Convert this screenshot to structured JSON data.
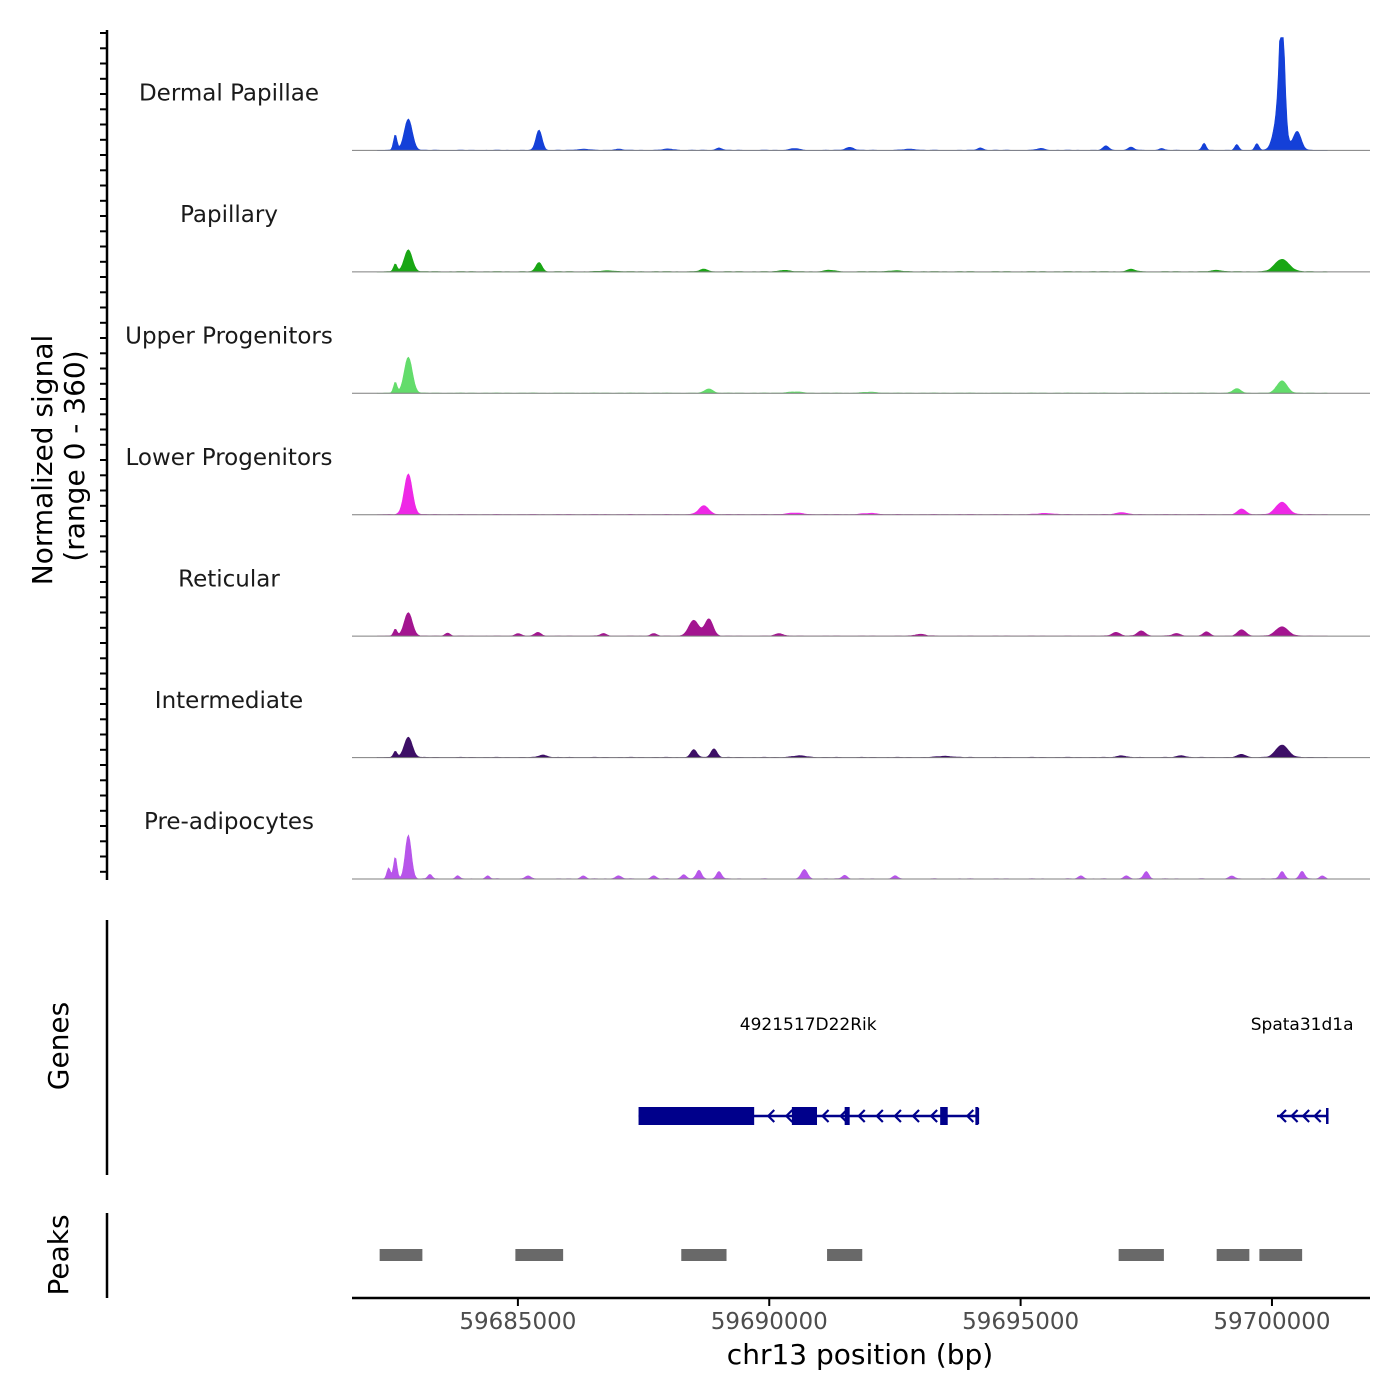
{
  "chart_data": {
    "type": "area",
    "chromosome": "chr13",
    "region": [
      59681700,
      59701950
    ],
    "ylabel": "Normalized signal",
    "ylabel_range": "(range 0 - 360)",
    "signal_range": [
      0,
      360
    ],
    "xlabel": "chr13 position (bp)",
    "xticks": [
      59685000,
      59690000,
      59695000,
      59700000
    ],
    "xtick_labels": [
      "59685000",
      "59690000",
      "59695000",
      "59700000"
    ],
    "tracks_title": "Normalized signal",
    "genes_title": "Genes",
    "peaks_title": "Peaks",
    "series": [
      {
        "name": "Dermal Papillae",
        "color": "#1440d8",
        "peaks": [
          [
            59682560,
            50,
            35
          ],
          [
            59682820,
            100,
            80
          ],
          [
            59685420,
            65,
            60
          ],
          [
            59686300,
            4,
            120
          ],
          [
            59687000,
            4,
            80
          ],
          [
            59688000,
            4,
            120
          ],
          [
            59689000,
            8,
            60
          ],
          [
            59690500,
            6,
            90
          ],
          [
            59691600,
            10,
            80
          ],
          [
            59692800,
            4,
            120
          ],
          [
            59694200,
            8,
            60
          ],
          [
            59695400,
            6,
            80
          ],
          [
            59696700,
            14,
            60
          ],
          [
            59697200,
            10,
            60
          ],
          [
            59697800,
            6,
            50
          ],
          [
            59698650,
            22,
            40
          ],
          [
            59699300,
            18,
            40
          ],
          [
            59699700,
            22,
            40
          ],
          [
            59700150,
            130,
            100
          ],
          [
            59700200,
            360,
            50
          ],
          [
            59700500,
            60,
            80
          ]
        ]
      },
      {
        "name": "Papillary",
        "color": "#19a614",
        "peaks": [
          [
            59682560,
            25,
            35
          ],
          [
            59682820,
            70,
            80
          ],
          [
            59685420,
            30,
            60
          ],
          [
            59686800,
            3,
            150
          ],
          [
            59688700,
            8,
            80
          ],
          [
            59690300,
            5,
            100
          ],
          [
            59691200,
            5,
            100
          ],
          [
            59692500,
            3,
            150
          ],
          [
            59697200,
            8,
            80
          ],
          [
            59698900,
            5,
            100
          ],
          [
            59700200,
            40,
            140
          ]
        ]
      },
      {
        "name": "Upper Progenitors",
        "color": "#63dc6b",
        "peaks": [
          [
            59682560,
            35,
            35
          ],
          [
            59682820,
            115,
            80
          ],
          [
            59688800,
            14,
            80
          ],
          [
            59690500,
            4,
            150
          ],
          [
            59692000,
            3,
            150
          ],
          [
            59699300,
            14,
            80
          ],
          [
            59700200,
            40,
            100
          ]
        ]
      },
      {
        "name": "Lower Progenitors",
        "color": "#ee28e6",
        "peaks": [
          [
            59682820,
            130,
            80
          ],
          [
            59688700,
            28,
            100
          ],
          [
            59690500,
            5,
            150
          ],
          [
            59692000,
            4,
            150
          ],
          [
            59695500,
            4,
            150
          ],
          [
            59697000,
            7,
            100
          ],
          [
            59699400,
            18,
            80
          ],
          [
            59700200,
            40,
            120
          ]
        ]
      },
      {
        "name": "Reticular",
        "color": "#a31590",
        "peaks": [
          [
            59682560,
            22,
            35
          ],
          [
            59682820,
            75,
            80
          ],
          [
            59683600,
            10,
            50
          ],
          [
            59685000,
            8,
            60
          ],
          [
            59685400,
            12,
            60
          ],
          [
            59686700,
            8,
            60
          ],
          [
            59687700,
            8,
            60
          ],
          [
            59688500,
            50,
            100
          ],
          [
            59688800,
            55,
            80
          ],
          [
            59690200,
            8,
            80
          ],
          [
            59693000,
            6,
            100
          ],
          [
            59696900,
            12,
            80
          ],
          [
            59697400,
            16,
            80
          ],
          [
            59698100,
            8,
            80
          ],
          [
            59698700,
            14,
            60
          ],
          [
            59699400,
            20,
            80
          ],
          [
            59700200,
            30,
            120
          ]
        ]
      },
      {
        "name": "Intermediate",
        "color": "#3d0f66",
        "peaks": [
          [
            59682560,
            20,
            35
          ],
          [
            59682820,
            65,
            80
          ],
          [
            59685500,
            8,
            80
          ],
          [
            59688500,
            25,
            60
          ],
          [
            59688900,
            28,
            60
          ],
          [
            59690600,
            5,
            150
          ],
          [
            59693500,
            4,
            150
          ],
          [
            59697000,
            6,
            80
          ],
          [
            59698200,
            6,
            80
          ],
          [
            59699400,
            10,
            80
          ],
          [
            59700200,
            40,
            120
          ]
        ]
      },
      {
        "name": "Pre-adipocytes",
        "color": "#b755ea",
        "peaks": [
          [
            59682430,
            35,
            35
          ],
          [
            59682560,
            70,
            35
          ],
          [
            59682820,
            140,
            60
          ],
          [
            59683250,
            15,
            40
          ],
          [
            59683800,
            10,
            40
          ],
          [
            59684400,
            10,
            40
          ],
          [
            59685200,
            10,
            50
          ],
          [
            59686300,
            10,
            50
          ],
          [
            59687000,
            10,
            60
          ],
          [
            59687700,
            10,
            50
          ],
          [
            59688300,
            14,
            50
          ],
          [
            59688600,
            28,
            50
          ],
          [
            59689000,
            24,
            50
          ],
          [
            59690700,
            30,
            60
          ],
          [
            59691500,
            12,
            50
          ],
          [
            59692500,
            10,
            50
          ],
          [
            59696200,
            10,
            50
          ],
          [
            59697100,
            10,
            50
          ],
          [
            59697500,
            24,
            50
          ],
          [
            59699200,
            10,
            50
          ],
          [
            59700200,
            24,
            50
          ],
          [
            59700600,
            24,
            50
          ],
          [
            59701000,
            10,
            50
          ]
        ]
      }
    ],
    "genes": [
      {
        "name": "4921517D22Rik",
        "color": "#00008b",
        "start": 59687400,
        "end": 59694150,
        "strand": "-",
        "exons": [
          [
            59687400,
            59689700
          ],
          [
            59690450,
            59690950
          ],
          [
            59691500,
            59691600
          ],
          [
            59693400,
            59693550
          ],
          [
            59694100,
            59694150
          ]
        ]
      },
      {
        "name": "Spata31d1a",
        "color": "#00008b",
        "start": 59700100,
        "end": 59701100,
        "strand": "-",
        "exons": []
      }
    ],
    "peak_regions": {
      "color": "#696969",
      "intervals": [
        [
          59682250,
          59683100
        ],
        [
          59684950,
          59685900
        ],
        [
          59688250,
          59689150
        ],
        [
          59691150,
          59691850
        ],
        [
          59696950,
          59697850
        ],
        [
          59698900,
          59699550
        ],
        [
          59699750,
          59700600
        ]
      ]
    }
  }
}
